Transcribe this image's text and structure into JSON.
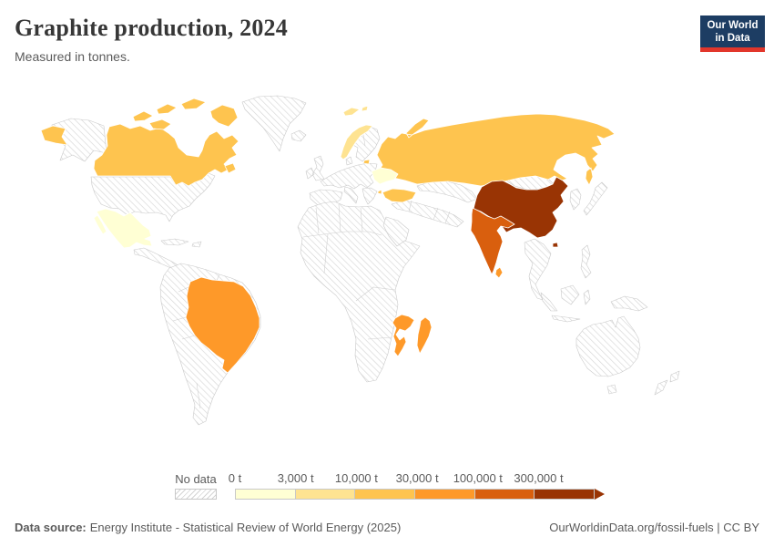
{
  "header": {
    "title": "Graphite production, 2024",
    "subtitle": "Measured in tonnes."
  },
  "logo": {
    "line1": "Our World",
    "line2": "in Data",
    "bg_color": "#1d3d63",
    "accent_color": "#e2362b"
  },
  "legend": {
    "no_data_label": "No data",
    "bins": [
      {
        "label": "0 t",
        "color": "#ffffd4"
      },
      {
        "label": "3,000 t",
        "color": "#fee391"
      },
      {
        "label": "10,000 t",
        "color": "#fec44f"
      },
      {
        "label": "30,000 t",
        "color": "#fe9929"
      },
      {
        "label": "100,000 t",
        "color": "#d95f0e"
      },
      {
        "label": "300,000 t",
        "color": "#993404"
      }
    ]
  },
  "footer": {
    "source_label": "Data source:",
    "source_text": "Energy Institute - Statistical Review of World Energy (2025)",
    "right_text": "OurWorldinData.org/fossil-fuels | CC BY"
  },
  "chart_data": {
    "type": "choropleth_map",
    "title": "Graphite production, 2024",
    "unit": "tonnes",
    "year": 2024,
    "color_scale": {
      "palette": "YlOrBr",
      "bin_edges_tonnes": [
        "0",
        "3,000",
        "10,000",
        "30,000",
        "100,000",
        "300,000"
      ],
      "no_data_style": "diagonal-hatch"
    },
    "countries": [
      {
        "name": "China",
        "bin": "300,000 t and over",
        "color": "#993404"
      },
      {
        "name": "India",
        "bin": "100,000 t – 300,000 t",
        "color": "#d95f0e"
      },
      {
        "name": "Brazil",
        "bin": "30,000 t – 100,000 t",
        "color": "#fe9929"
      },
      {
        "name": "Mozambique",
        "bin": "30,000 t – 100,000 t",
        "color": "#fe9929"
      },
      {
        "name": "Madagascar",
        "bin": "30,000 t – 100,000 t",
        "color": "#fe9929"
      },
      {
        "name": "Sri Lanka",
        "bin": "30,000 t – 100,000 t",
        "color": "#fe9929"
      },
      {
        "name": "Canada",
        "bin": "10,000 t – 30,000 t",
        "color": "#fec44f"
      },
      {
        "name": "Russia",
        "bin": "10,000 t – 30,000 t",
        "color": "#fec44f"
      },
      {
        "name": "Turkey",
        "bin": "10,000 t – 30,000 t",
        "color": "#fec44f"
      },
      {
        "name": "Norway",
        "bin": "3,000 t – 10,000 t",
        "color": "#fee391"
      },
      {
        "name": "Ukraine",
        "bin": "0 t – 3,000 t",
        "color": "#ffffd4"
      },
      {
        "name": "Mexico",
        "bin": "0 t – 3,000 t",
        "color": "#ffffd4"
      }
    ]
  }
}
